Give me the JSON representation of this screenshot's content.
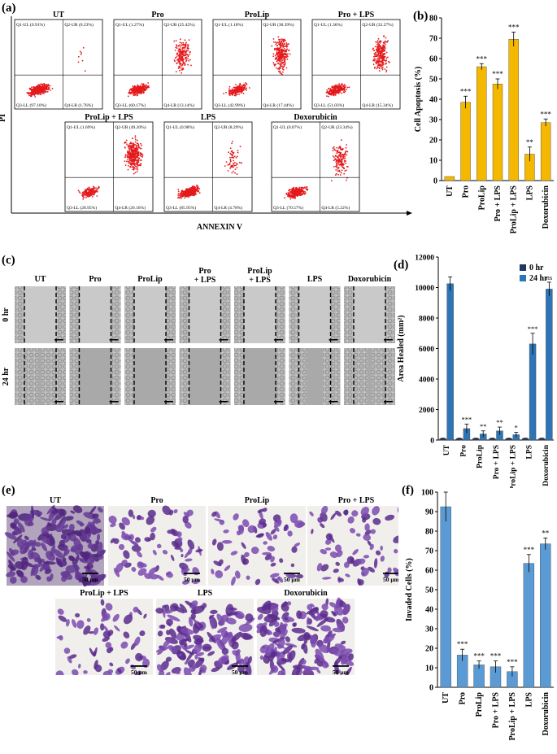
{
  "panels": {
    "a": "(a)",
    "b": "(b)",
    "c": "(c)",
    "d": "(d)",
    "e": "(e)",
    "f": "(f)"
  },
  "flow": {
    "ylabel": "PI",
    "xlabel": "ANNEXIN V",
    "plots": [
      {
        "title": "UT",
        "ul": "Q1-UL (0.91%)",
        "ur": "Q2-UR (0.23%)",
        "ll": "Q3-LL (97.10%)",
        "lr": "Q4-LR (1.76%)",
        "apoptotic": 0.02
      },
      {
        "title": "Pro",
        "ul": "Q1-UL (1.27%)",
        "ur": "Q2-UR (25.42%)",
        "ll": "Q3-LL (60.17%)",
        "lr": "Q4-LR (13.14%)",
        "apoptotic": 0.38
      },
      {
        "title": "ProLip",
        "ul": "Q1-UL (1.18%)",
        "ur": "Q2-UR (38.39%)",
        "ll": "Q3-LL (42.99%)",
        "lr": "Q4-LR (17.44%)",
        "apoptotic": 0.56
      },
      {
        "title": "Pro + LPS",
        "ul": "Q1-UL (1.36%)",
        "ur": "Q2-UR (32.27%)",
        "ll": "Q3-LL (51.03%)",
        "lr": "Q4-LR (15.34%)",
        "apoptotic": 0.48
      },
      {
        "title": "ProLip + LPS",
        "ul": "Q1-UL (1.69%)",
        "ur": "Q2-UR (49.20%)",
        "ll": "Q3-LL (28.95%)",
        "lr": "Q4-LR (20.16%)",
        "apoptotic": 0.69
      },
      {
        "title": "LPS",
        "ul": "Q1-UL (0.98%)",
        "ur": "Q2-UR (8.29%)",
        "ll": "Q3-LL (85.95%)",
        "lr": "Q4-LR (4.78%)",
        "apoptotic": 0.13
      },
      {
        "title": "Doxorubicin",
        "ul": "Q1-UL (0.87%)",
        "ur": "Q2-UR (23.34%)",
        "ll": "Q3-LL (70.57%)",
        "lr": "Q4-LR (5.22%)",
        "apoptotic": 0.28
      }
    ]
  },
  "chart_data": [
    {
      "id": "b",
      "type": "bar",
      "title": "",
      "xlabel": "",
      "ylabel": "Cell Apoptosis (%)",
      "categories": [
        "UT",
        "Pro",
        "ProLip",
        "Pro + LPS",
        "ProLip + LPS",
        "LPS",
        "Doxorubicin"
      ],
      "values": [
        2,
        38.5,
        56,
        47.5,
        69.5,
        13,
        28.5
      ],
      "errors": [
        0,
        3,
        1.5,
        2.5,
        3.5,
        3.5,
        1.8
      ],
      "significance": [
        "",
        "***",
        "***",
        "***",
        "***",
        "**",
        "***"
      ],
      "ylim": [
        0,
        80
      ],
      "yticks": [
        0,
        10,
        20,
        30,
        40,
        50,
        60,
        70,
        80
      ],
      "color": "#f5b800"
    },
    {
      "id": "d",
      "type": "bar",
      "title": "",
      "xlabel": "",
      "ylabel": "Area Healed (mm²)",
      "categories": [
        "UT",
        "Pro",
        "ProLip",
        "Pro + LPS",
        "ProLip + LPS",
        "LPS",
        "Doxorubicin"
      ],
      "series": [
        {
          "name": "0 hr",
          "values": [
            100,
            100,
            100,
            100,
            100,
            100,
            100
          ],
          "errors": [
            20,
            20,
            20,
            20,
            20,
            20,
            20
          ],
          "color": "#1f3864"
        },
        {
          "name": "24 hr",
          "values": [
            10250,
            750,
            400,
            600,
            350,
            6300,
            9900
          ],
          "errors": [
            450,
            300,
            200,
            250,
            150,
            700,
            450
          ],
          "color": "#2e75b6"
        }
      ],
      "significance": [
        "",
        "***",
        "**",
        "**",
        "*",
        "***",
        "ns"
      ],
      "ylim": [
        0,
        12000
      ],
      "yticks": [
        0,
        2000,
        4000,
        6000,
        8000,
        10000,
        12000
      ],
      "legend": "top-right"
    },
    {
      "id": "f",
      "type": "bar",
      "title": "",
      "xlabel": "",
      "ylabel": "Invaded  Cells (%)",
      "categories": [
        "UT",
        "Pro",
        "ProLip",
        "Pro + LPS",
        "ProLip + LPS",
        "LPS",
        "Doxorubicin"
      ],
      "values": [
        92.5,
        16.5,
        11.5,
        10.5,
        8,
        63.5,
        73.5
      ],
      "errors": [
        7.5,
        3,
        2,
        3,
        2.5,
        4.5,
        3
      ],
      "significance": [
        "",
        "***",
        "***",
        "***",
        "***",
        "***",
        "**"
      ],
      "ylim": [
        0,
        100
      ],
      "yticks": [
        0,
        10,
        20,
        30,
        40,
        50,
        60,
        70,
        80,
        90,
        100
      ],
      "color": "#5b9bd5"
    }
  ],
  "wound": {
    "columns": [
      "UT",
      "Pro",
      "ProLip",
      "Pro\n+ LPS",
      "ProLip\n+ LPS",
      "LPS",
      "Doxorubicin"
    ],
    "rows": [
      "0 hr",
      "24 hr"
    ],
    "gap_0hr": [
      0.62,
      0.62,
      0.62,
      0.62,
      0.62,
      0.62,
      0.62
    ],
    "gap_24hr": [
      0.05,
      0.62,
      0.62,
      0.62,
      0.62,
      0.3,
      0.08
    ]
  },
  "invasion": {
    "images": [
      {
        "title": "UT",
        "scale": "50 μm",
        "density": 1.0
      },
      {
        "title": "Pro",
        "scale": "50 μm",
        "density": 0.3
      },
      {
        "title": "ProLip",
        "scale": "50 μm",
        "density": 0.25
      },
      {
        "title": "Pro + LPS",
        "scale": "50 μm",
        "density": 0.25
      },
      {
        "title": "ProLip + LPS",
        "scale": "50 μm",
        "density": 0.2
      },
      {
        "title": "LPS",
        "scale": "50 μm",
        "density": 0.7
      },
      {
        "title": "Doxorubicin",
        "scale": "50 μm",
        "density": 0.75
      }
    ]
  }
}
